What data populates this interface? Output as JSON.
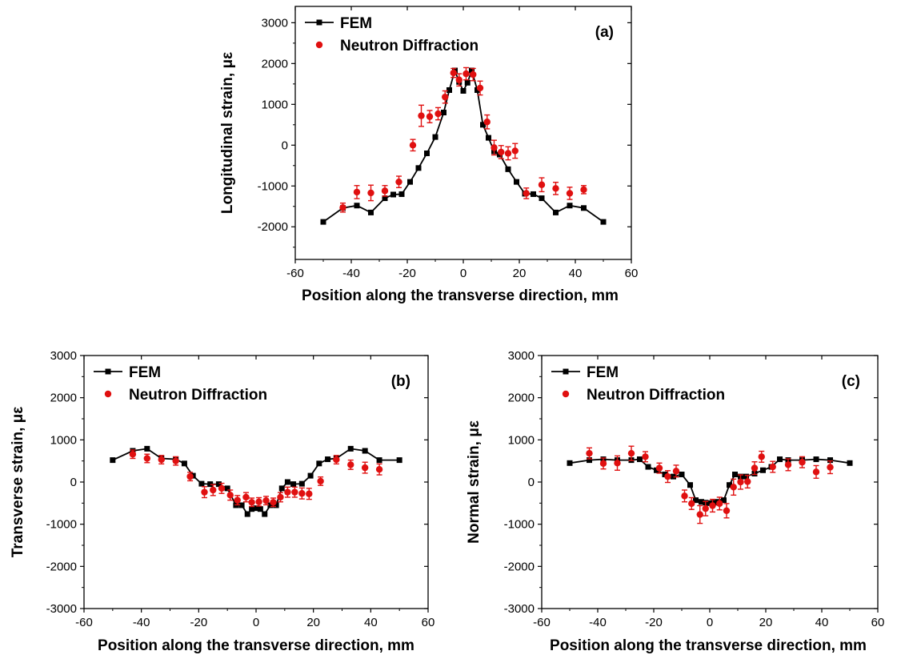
{
  "colors": {
    "fem": "#000000",
    "nd": "#e01010",
    "axis": "#000000"
  },
  "chart_data": [
    {
      "id": "a",
      "type": "line",
      "panel_label": "(a)",
      "xlabel": "Position along the transverse direction, mm",
      "ylabel": "Longitudinal strain, με",
      "xlim": [
        -60,
        60
      ],
      "ylim": [
        -2800,
        3400
      ],
      "xticks": [
        -60,
        -40,
        -20,
        0,
        20,
        40,
        60
      ],
      "yticks": [
        -2000,
        -1000,
        0,
        1000,
        2000,
        3000
      ],
      "legend": {
        "position": "top-left",
        "entries": [
          "FEM",
          "Neutron Diffraction"
        ]
      },
      "series": [
        {
          "name": "FEM",
          "style": "line-square",
          "x": [
            -50,
            -43,
            -38,
            -33,
            -28,
            -25,
            -22,
            -19,
            -16,
            -13,
            -10,
            -7,
            -5,
            -3,
            -1.5,
            0,
            1.5,
            3,
            5,
            7,
            9,
            11,
            13,
            16,
            19,
            22,
            25,
            28,
            33,
            38,
            43,
            50
          ],
          "y": [
            -1880,
            -1540,
            -1480,
            -1650,
            -1300,
            -1210,
            -1200,
            -900,
            -560,
            -200,
            200,
            800,
            1350,
            1830,
            1550,
            1330,
            1530,
            1830,
            1350,
            500,
            180,
            -150,
            -230,
            -590,
            -900,
            -1190,
            -1200,
            -1300,
            -1650,
            -1480,
            -1540,
            -1880
          ]
        },
        {
          "name": "Neutron Diffraction",
          "style": "scatter-errorbar",
          "x": [
            -43,
            -38,
            -33,
            -28,
            -23,
            -18,
            -15,
            -12,
            -9,
            -6.5,
            -3.5,
            -1.5,
            1,
            3.5,
            6,
            8.5,
            11,
            13.5,
            16,
            18.5,
            22.5,
            28,
            33,
            38,
            43
          ],
          "y": [
            -1530,
            -1150,
            -1170,
            -1120,
            -900,
            0,
            720,
            700,
            770,
            1180,
            1770,
            1600,
            1750,
            1730,
            1400,
            570,
            -60,
            -170,
            -200,
            -140,
            -1180,
            -970,
            -1060,
            -1180,
            -1090
          ],
          "err": [
            110,
            160,
            190,
            130,
            140,
            140,
            260,
            150,
            150,
            150,
            110,
            150,
            150,
            150,
            170,
            170,
            180,
            160,
            160,
            180,
            130,
            170,
            150,
            150,
            100
          ]
        }
      ]
    },
    {
      "id": "b",
      "type": "line",
      "panel_label": "(b)",
      "xlabel": "Position along the transverse direction, mm",
      "ylabel": "Transverse strain, με",
      "xlim": [
        -60,
        60
      ],
      "ylim": [
        -3000,
        3000
      ],
      "xticks": [
        -60,
        -40,
        -20,
        0,
        20,
        40,
        60
      ],
      "yticks": [
        -3000,
        -2000,
        -1000,
        0,
        1000,
        2000,
        3000
      ],
      "legend": {
        "position": "top-left",
        "entries": [
          "FEM",
          "Neutron Diffraction"
        ]
      },
      "series": [
        {
          "name": "FEM",
          "style": "line-square",
          "x": [
            -50,
            -43,
            -38,
            -33,
            -28,
            -25,
            -22,
            -19,
            -16,
            -13,
            -10,
            -7,
            -5,
            -3,
            -1.5,
            0,
            1.5,
            3,
            5,
            7,
            9,
            11,
            13,
            16,
            19,
            22,
            25,
            28,
            33,
            38,
            43,
            50
          ],
          "y": [
            520,
            740,
            790,
            560,
            540,
            440,
            150,
            -40,
            -50,
            -50,
            -150,
            -550,
            -550,
            -760,
            -640,
            -620,
            -640,
            -760,
            -550,
            -550,
            -150,
            0,
            -50,
            -40,
            150,
            440,
            540,
            560,
            790,
            740,
            520,
            520
          ],
          "y_note": "",
          "x_fix": []
        },
        {
          "name": "Neutron Diffraction",
          "style": "scatter-errorbar",
          "x": [
            -43,
            -38,
            -33,
            -28,
            -23,
            -18,
            -15,
            -12,
            -9,
            -6.5,
            -3.5,
            -1.5,
            1,
            3.5,
            6,
            8.5,
            11,
            13.5,
            16,
            18.5,
            22.5,
            28,
            33,
            38,
            43
          ],
          "y": [
            660,
            560,
            530,
            500,
            130,
            -240,
            -190,
            -150,
            -310,
            -430,
            -360,
            -480,
            -470,
            -440,
            -480,
            -360,
            -240,
            -240,
            -270,
            -280,
            20,
            530,
            410,
            340,
            300
          ],
          "err": [
            100,
            100,
            100,
            100,
            100,
            130,
            130,
            120,
            120,
            110,
            110,
            100,
            100,
            100,
            100,
            110,
            120,
            120,
            130,
            130,
            100,
            100,
            110,
            130,
            130
          ]
        }
      ]
    },
    {
      "id": "c",
      "type": "line",
      "panel_label": "(c)",
      "xlabel": "Position along the transverse direction, mm",
      "ylabel": "Normal strain, με",
      "xlim": [
        -60,
        60
      ],
      "ylim": [
        -3000,
        3000
      ],
      "xticks": [
        -60,
        -40,
        -20,
        0,
        20,
        40,
        60
      ],
      "yticks": [
        -3000,
        -2000,
        -1000,
        0,
        1000,
        2000,
        3000
      ],
      "legend": {
        "position": "top-left",
        "entries": [
          "FEM",
          "Neutron Diffraction"
        ]
      },
      "series": [
        {
          "name": "FEM",
          "style": "line-square",
          "x": [
            -50,
            -43,
            -38,
            -33,
            -28,
            -25,
            -22,
            -19,
            -16,
            -13,
            -10,
            -7,
            -5,
            -3,
            -1.5,
            0,
            1.5,
            3,
            5,
            7,
            9,
            11,
            13,
            16,
            19,
            22,
            25,
            28,
            33,
            38,
            43,
            50
          ],
          "y": [
            450,
            520,
            540,
            520,
            520,
            540,
            360,
            280,
            180,
            130,
            180,
            -70,
            -430,
            -470,
            -490,
            -500,
            -490,
            -470,
            -430,
            -70,
            180,
            130,
            130,
            200,
            280,
            360,
            540,
            520,
            520,
            540,
            520,
            450
          ]
        },
        {
          "name": "Neutron Diffraction",
          "style": "scatter-errorbar",
          "x": [
            -43,
            -38,
            -33,
            -28,
            -23,
            -18,
            -15,
            -12,
            -9,
            -6.5,
            -3.5,
            -1.5,
            1,
            3.5,
            6,
            8.5,
            11,
            13.5,
            16,
            18.5,
            22.5,
            28,
            33,
            38,
            43
          ],
          "y": [
            680,
            440,
            450,
            680,
            600,
            330,
            130,
            260,
            -330,
            -510,
            -770,
            -630,
            -560,
            -510,
            -680,
            -120,
            0,
            10,
            330,
            600,
            360,
            410,
            470,
            240,
            350
          ],
          "err": [
            130,
            130,
            170,
            170,
            120,
            120,
            140,
            140,
            140,
            140,
            210,
            170,
            150,
            150,
            170,
            190,
            170,
            150,
            150,
            130,
            130,
            140,
            130,
            150,
            150
          ]
        }
      ]
    }
  ]
}
